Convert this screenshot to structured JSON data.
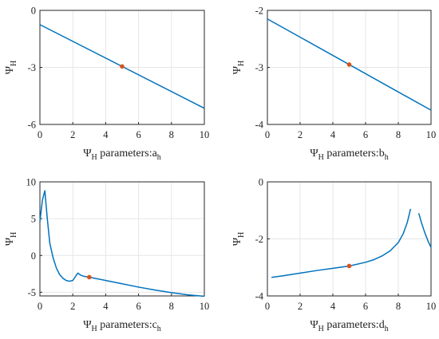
{
  "chart_data": [
    {
      "type": "line",
      "xlabel": {
        "main": "Ψ",
        "sub1": "H",
        "mid": " parameters:a",
        "sub2": "h"
      },
      "ylabel": {
        "main": "Ψ",
        "sub": "H"
      },
      "xlim": [
        0,
        10
      ],
      "ylim": [
        -6,
        0
      ],
      "xticks": [
        0,
        2,
        4,
        6,
        8,
        10
      ],
      "yticks": [
        -6,
        -3,
        0
      ],
      "grid": true,
      "series": [
        {
          "x": [
            0,
            10
          ],
          "y": [
            -0.75,
            -5.15
          ]
        }
      ],
      "marker": {
        "x": 5,
        "y": -2.95
      },
      "line_color": "#0072BD",
      "marker_color": "#D95319"
    },
    {
      "type": "line",
      "xlabel": {
        "main": "Ψ",
        "sub1": "H",
        "mid": " parameters:b",
        "sub2": "h"
      },
      "ylabel": {
        "main": "Ψ",
        "sub": "H"
      },
      "xlim": [
        0,
        10
      ],
      "ylim": [
        -4,
        -2
      ],
      "xticks": [
        0,
        2,
        4,
        6,
        8,
        10
      ],
      "yticks": [
        -4,
        -3,
        -2
      ],
      "grid": true,
      "series": [
        {
          "x": [
            0,
            10
          ],
          "y": [
            -2.15,
            -3.75
          ]
        }
      ],
      "marker": {
        "x": 5,
        "y": -2.95
      },
      "line_color": "#0072BD",
      "marker_color": "#D95319"
    },
    {
      "type": "line",
      "xlabel": {
        "main": "Ψ",
        "sub1": "H",
        "mid": " parameters:c",
        "sub2": "h"
      },
      "ylabel": {
        "main": "Ψ",
        "sub": "H"
      },
      "xlim": [
        0,
        10
      ],
      "ylim": [
        -5.5,
        10
      ],
      "xticks": [
        0,
        2,
        4,
        6,
        8,
        10
      ],
      "yticks": [
        -5,
        0,
        5,
        10
      ],
      "grid": true,
      "series": [
        {
          "x": [
            0,
            0.15,
            0.3,
            0.45,
            0.6,
            0.8,
            1.0,
            1.2,
            1.4,
            1.6,
            1.8,
            2.0,
            2.15,
            2.3,
            2.5,
            2.7,
            3.0,
            4,
            5,
            6,
            7,
            8,
            9,
            10
          ],
          "y": [
            4.6,
            7.5,
            8.8,
            5.0,
            1.7,
            -0.3,
            -1.7,
            -2.6,
            -3.1,
            -3.4,
            -3.5,
            -3.4,
            -2.9,
            -2.4,
            -2.7,
            -2.85,
            -2.95,
            -3.4,
            -3.85,
            -4.3,
            -4.7,
            -5.05,
            -5.35,
            -5.55
          ]
        }
      ],
      "marker": {
        "x": 3,
        "y": -2.95
      },
      "line_color": "#0072BD",
      "marker_color": "#D95319"
    },
    {
      "type": "line",
      "xlabel": {
        "main": "Ψ",
        "sub1": "H",
        "mid": " parameters:d",
        "sub2": "h"
      },
      "ylabel": {
        "main": "Ψ",
        "sub": "H"
      },
      "xlim": [
        0,
        10
      ],
      "ylim": [
        -4,
        0
      ],
      "xticks": [
        0,
        2,
        4,
        6,
        8,
        10
      ],
      "yticks": [
        -4,
        -2,
        0
      ],
      "grid": true,
      "series": [
        {
          "x": [
            0.25,
            1,
            2,
            3,
            4,
            5,
            6,
            6.5,
            7,
            7.5,
            8,
            8.3,
            8.55,
            8.75
          ],
          "y": [
            -3.35,
            -3.29,
            -3.2,
            -3.11,
            -3.03,
            -2.95,
            -2.82,
            -2.73,
            -2.6,
            -2.42,
            -2.13,
            -1.82,
            -1.42,
            -0.95
          ]
        },
        {
          "x": [
            9.25,
            9.4,
            9.6,
            9.8,
            10
          ],
          "y": [
            -1.1,
            -1.4,
            -1.75,
            -2.05,
            -2.3
          ]
        }
      ],
      "marker": {
        "x": 5,
        "y": -2.95
      },
      "line_color": "#0072BD",
      "marker_color": "#D95319"
    }
  ]
}
